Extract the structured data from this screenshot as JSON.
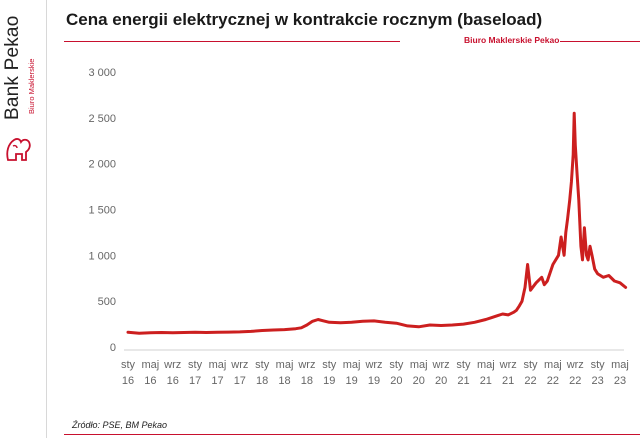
{
  "header": {
    "title": "Cena energii elektrycznej w kontrakcie rocznym (baseload)",
    "brand_caption": "Biuro Maklerskie Pekao"
  },
  "logo": {
    "name": "Bank Pekao",
    "sub": "Biuro Maklerskie"
  },
  "colors": {
    "accent": "#c8102e",
    "series": "#cc1f1f"
  },
  "footer": {
    "source": "Źródło: PSE, BM Pekao"
  },
  "chart_data": {
    "type": "line",
    "title": "",
    "xlabel": "",
    "ylabel": "",
    "ylim": [
      0,
      3000
    ],
    "yticks": [
      0,
      500,
      1000,
      1500,
      2000,
      2500,
      3000
    ],
    "ytick_labels": [
      "0",
      "500",
      "1 000",
      "1 500",
      "2 000",
      "2 500",
      "3 000"
    ],
    "x_tick_labels": [
      [
        "sty",
        "16"
      ],
      [
        "maj",
        "16"
      ],
      [
        "wrz",
        "16"
      ],
      [
        "sty",
        "17"
      ],
      [
        "maj",
        "17"
      ],
      [
        "wrz",
        "17"
      ],
      [
        "sty",
        "18"
      ],
      [
        "maj",
        "18"
      ],
      [
        "wrz",
        "18"
      ],
      [
        "sty",
        "19"
      ],
      [
        "maj",
        "19"
      ],
      [
        "wrz",
        "19"
      ],
      [
        "sty",
        "20"
      ],
      [
        "maj",
        "20"
      ],
      [
        "wrz",
        "20"
      ],
      [
        "sty",
        "21"
      ],
      [
        "maj",
        "21"
      ],
      [
        "wrz",
        "21"
      ],
      [
        "sty",
        "22"
      ],
      [
        "maj",
        "22"
      ],
      [
        "wrz",
        "22"
      ],
      [
        "sty",
        "23"
      ],
      [
        "maj",
        "23"
      ]
    ],
    "grid": false,
    "series": [
      {
        "x": [
          "2016-01",
          "2016-03",
          "2016-05",
          "2016-07",
          "2016-09",
          "2016-11",
          "2017-01",
          "2017-03",
          "2017-05",
          "2017-07",
          "2017-09",
          "2017-11",
          "2018-01",
          "2018-03",
          "2018-05",
          "2018-07",
          "2018-08",
          "2018-09",
          "2018-10",
          "2018-11",
          "2018-12",
          "2019-01",
          "2019-03",
          "2019-05",
          "2019-07",
          "2019-09",
          "2019-11",
          "2020-01",
          "2020-03",
          "2020-05",
          "2020-07",
          "2020-09",
          "2020-11",
          "2021-01",
          "2021-03",
          "2021-05",
          "2021-06",
          "2021-07",
          "2021-08",
          "2021-09",
          "2021-10",
          "2021-10-15",
          "2021-11",
          "2021-11-15",
          "2021-12",
          "2021-12-15",
          "2022-01",
          "2022-02",
          "2022-03",
          "2022-03-15",
          "2022-04",
          "2022-05",
          "2022-06",
          "2022-06-15",
          "2022-07",
          "2022-07-10",
          "2022-07-20",
          "2022-08",
          "2022-08-10",
          "2022-08-20",
          "2022-08-25",
          "2022-09",
          "2022-09-10",
          "2022-09-20",
          "2022-10",
          "2022-10-10",
          "2022-10-20",
          "2022-11",
          "2022-11-10",
          "2022-11-20",
          "2022-12",
          "2022-12-15",
          "2023-01",
          "2023-02",
          "2023-03",
          "2023-04",
          "2023-05",
          "2023-06"
        ],
        "values": [
          160,
          150,
          155,
          158,
          155,
          158,
          160,
          158,
          160,
          162,
          165,
          170,
          180,
          185,
          190,
          200,
          210,
          240,
          280,
          300,
          285,
          270,
          265,
          270,
          280,
          285,
          270,
          260,
          230,
          220,
          240,
          235,
          240,
          250,
          270,
          300,
          320,
          340,
          360,
          350,
          380,
          400,
          450,
          500,
          650,
          900,
          620,
          700,
          760,
          680,
          720,
          900,
          1000,
          1200,
          1000,
          1250,
          1400,
          1600,
          1800,
          2100,
          2550,
          2200,
          1900,
          1600,
          1100,
          950,
          1300,
          1000,
          950,
          1100,
          1000,
          850,
          800,
          760,
          780,
          720,
          700,
          650
        ]
      }
    ]
  }
}
